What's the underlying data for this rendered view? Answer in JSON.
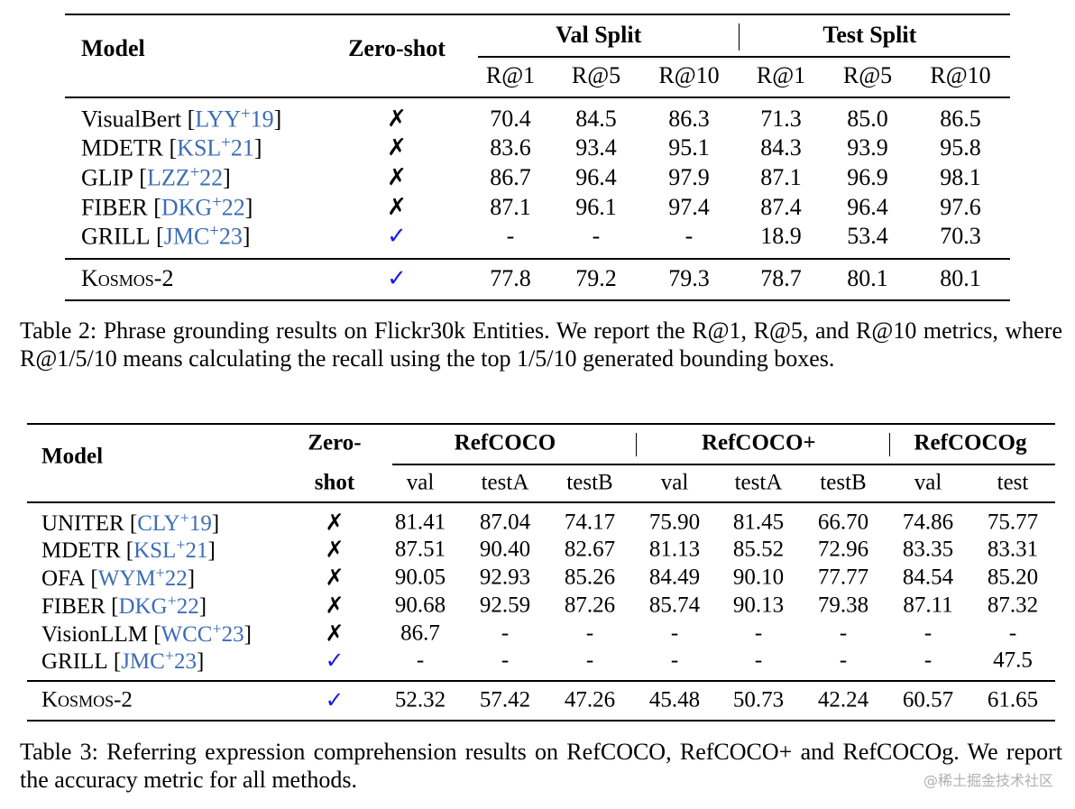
{
  "table2": {
    "header": {
      "model": "Model",
      "zero_shot": [
        "Zero-shot"
      ],
      "groups": [
        {
          "label": "Val Split",
          "columns": [
            "R@1",
            "R@5",
            "R@10"
          ]
        },
        {
          "label": "Test Split",
          "columns": [
            "R@1",
            "R@5",
            "R@10"
          ]
        }
      ]
    },
    "rows": [
      {
        "model": "VisualBert",
        "citation": [
          "[",
          "LYY",
          "+",
          "19",
          "]"
        ],
        "zero_shot": "✗",
        "zero_shot_color": "#000000",
        "values": [
          "70.4",
          "84.5",
          "86.3",
          "71.3",
          "85.0",
          "86.5"
        ]
      },
      {
        "model": "MDETR",
        "citation": [
          "[",
          "KSL",
          "+",
          "21",
          "]"
        ],
        "zero_shot": "✗",
        "zero_shot_color": "#000000",
        "values": [
          "83.6",
          "93.4",
          "95.1",
          "84.3",
          "93.9",
          "95.8"
        ]
      },
      {
        "model": "GLIP",
        "citation": [
          "[",
          "LZZ",
          "+",
          "22",
          "]"
        ],
        "zero_shot": "✗",
        "zero_shot_color": "#000000",
        "values": [
          "86.7",
          "96.4",
          "97.9",
          "87.1",
          "96.9",
          "98.1"
        ]
      },
      {
        "model": "FIBER",
        "citation": [
          "[",
          "DKG",
          "+",
          "22",
          "]"
        ],
        "zero_shot": "✗",
        "zero_shot_color": "#000000",
        "values": [
          "87.1",
          "96.1",
          "97.4",
          "87.4",
          "96.4",
          "97.6"
        ]
      },
      {
        "model": "GRILL",
        "citation": [
          "[",
          "JMC",
          "+",
          "23",
          "]"
        ],
        "zero_shot": "✓",
        "zero_shot_color": "#1c1ce8",
        "values": [
          "-",
          "-",
          "-",
          "18.9",
          "53.4",
          "70.3"
        ]
      },
      {
        "model": "Kosmos-2",
        "zero_shot": "✓",
        "zero_shot_color": "#1c1ce8",
        "values": [
          "77.8",
          "79.2",
          "79.3",
          "78.7",
          "80.1",
          "80.1"
        ]
      }
    ],
    "caption": "Table 2: Phrase grounding results on Flickr30k Entities. We report the R@1, R@5, and R@10 metrics, where R@1/5/10 means calculating the recall using the top 1/5/10 generated bounding boxes."
  },
  "table3": {
    "header": {
      "model": "Model",
      "zero_shot": [
        "Zero-",
        "shot"
      ],
      "groups": [
        {
          "label": "RefCOCO",
          "columns": [
            "val",
            "testA",
            "testB"
          ]
        },
        {
          "label": "RefCOCO+",
          "columns": [
            "val",
            "testA",
            "testB"
          ]
        },
        {
          "label": "RefCOCOg",
          "columns": [
            "val",
            "test"
          ]
        }
      ]
    },
    "rows": [
      {
        "model": "UNITER",
        "citation": [
          "[",
          "CLY",
          "+",
          "19",
          "]"
        ],
        "zero_shot": "✗",
        "zero_shot_color": "#000000",
        "values": [
          "81.41",
          "87.04",
          "74.17",
          "75.90",
          "81.45",
          "66.70",
          "74.86",
          "75.77"
        ]
      },
      {
        "model": "MDETR",
        "citation": [
          "[",
          "KSL",
          "+",
          "21",
          "]"
        ],
        "zero_shot": "✗",
        "zero_shot_color": "#000000",
        "values": [
          "87.51",
          "90.40",
          "82.67",
          "81.13",
          "85.52",
          "72.96",
          "83.35",
          "83.31"
        ]
      },
      {
        "model": "OFA",
        "citation": [
          "[",
          "WYM",
          "+",
          "22",
          "]"
        ],
        "zero_shot": "✗",
        "zero_shot_color": "#000000",
        "values": [
          "90.05",
          "92.93",
          "85.26",
          "84.49",
          "90.10",
          "77.77",
          "84.54",
          "85.20"
        ]
      },
      {
        "model": "FIBER",
        "citation": [
          "[",
          "DKG",
          "+",
          "22",
          "]"
        ],
        "zero_shot": "✗",
        "zero_shot_color": "#000000",
        "values": [
          "90.68",
          "92.59",
          "87.26",
          "85.74",
          "90.13",
          "79.38",
          "87.11",
          "87.32"
        ]
      },
      {
        "model": "VisionLLM",
        "citation": [
          "[",
          "WCC",
          "+",
          "23",
          "]"
        ],
        "zero_shot": "✗",
        "zero_shot_color": "#000000",
        "values": [
          "86.7",
          "-",
          "-",
          "-",
          "-",
          "-",
          "-",
          "-"
        ]
      },
      {
        "model": "GRILL",
        "citation": [
          "[",
          "JMC",
          "+",
          "23",
          "]"
        ],
        "zero_shot": "✓",
        "zero_shot_color": "#1c1ce8",
        "values": [
          "-",
          "-",
          "-",
          "-",
          "-",
          "-",
          "-",
          "47.5"
        ]
      },
      {
        "model": "Kosmos-2",
        "zero_shot": "✓",
        "zero_shot_color": "#1c1ce8",
        "values": [
          "52.32",
          "57.42",
          "47.26",
          "45.48",
          "50.73",
          "42.24",
          "60.57",
          "61.65"
        ]
      }
    ],
    "caption": "Table 3: Referring expression comprehension results on RefCOCO, RefCOCO+ and RefCOCOg. We report the accuracy metric for all methods."
  },
  "watermark": "@稀土掘金技术社区"
}
